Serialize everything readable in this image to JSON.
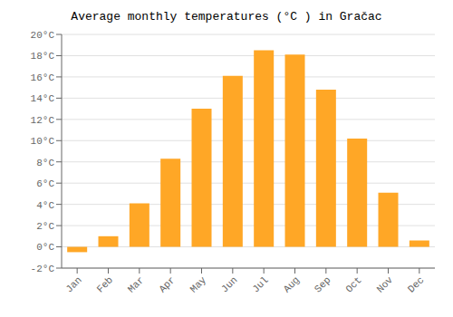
{
  "chart_data": {
    "type": "bar",
    "title": "Average monthly temperatures (°C ) in Gračac",
    "categories": [
      "Jan",
      "Feb",
      "Mar",
      "Apr",
      "May",
      "Jun",
      "Jul",
      "Aug",
      "Sep",
      "Oct",
      "Nov",
      "Dec"
    ],
    "values": [
      -0.5,
      1.0,
      4.1,
      8.3,
      13.0,
      16.1,
      18.5,
      18.1,
      14.8,
      10.2,
      5.1,
      0.6
    ],
    "color": "#FFA726",
    "ylim": [
      -2,
      20
    ],
    "yticks": [
      {
        "value": -2,
        "label": "-2°C"
      },
      {
        "value": 0,
        "label": "0°C"
      },
      {
        "value": 2,
        "label": "2°C"
      },
      {
        "value": 4,
        "label": "4°C"
      },
      {
        "value": 6,
        "label": "6°C"
      },
      {
        "value": 8,
        "label": "8°C"
      },
      {
        "value": 10,
        "label": "10°C"
      },
      {
        "value": 12,
        "label": "12°C"
      },
      {
        "value": 14,
        "label": "14°C"
      },
      {
        "value": 16,
        "label": "16°C"
      },
      {
        "value": 18,
        "label": "18°C"
      },
      {
        "value": 20,
        "label": "20°C"
      }
    ],
    "grid": true
  }
}
